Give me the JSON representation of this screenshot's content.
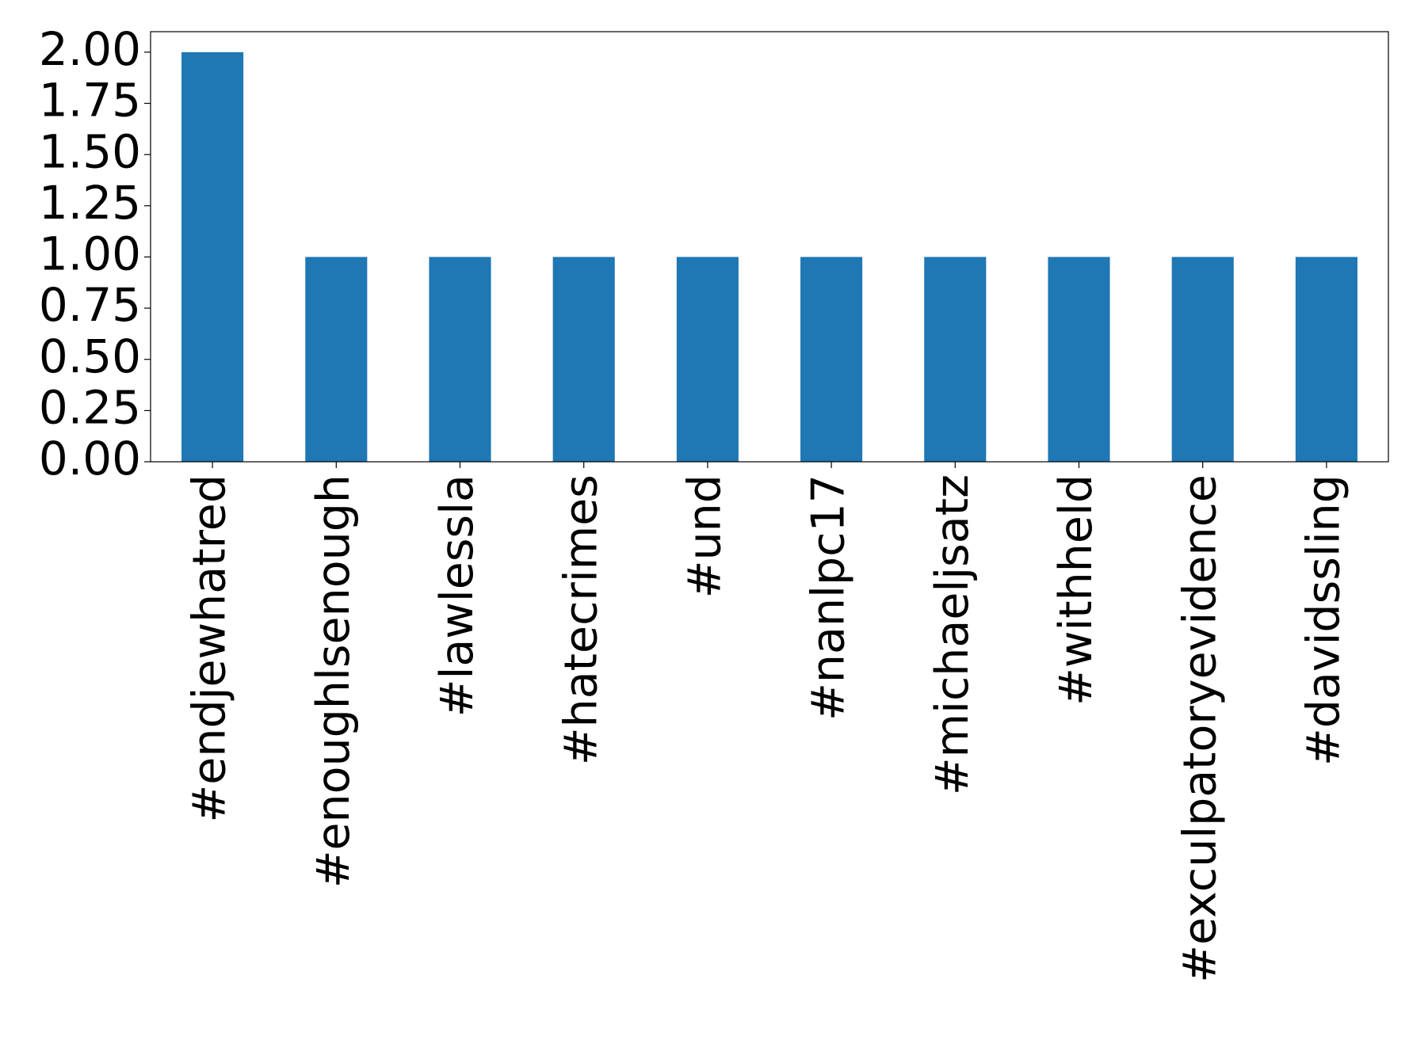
{
  "chart_data": {
    "type": "bar",
    "categories": [
      "#endjewhatred",
      "#enoughlsenough",
      "#lawlessla",
      "#hatecrimes",
      "#und",
      "#nanlpc17",
      "#michaeljsatz",
      "#withheld",
      "#exculpatoryevidence",
      "#davidssling"
    ],
    "values": [
      2,
      1,
      1,
      1,
      1,
      1,
      1,
      1,
      1,
      1
    ],
    "color": "#1f77b4",
    "ylim": [
      0,
      2.1
    ],
    "yticks": [
      {
        "value": 0,
        "label": "0.00"
      },
      {
        "value": 0.25,
        "label": "0.25"
      },
      {
        "value": 0.5,
        "label": "0.50"
      },
      {
        "value": 0.75,
        "label": "0.75"
      },
      {
        "value": 1,
        "label": "1.00"
      },
      {
        "value": 1.25,
        "label": "1.25"
      },
      {
        "value": 1.5,
        "label": "1.50"
      },
      {
        "value": 1.75,
        "label": "1.75"
      },
      {
        "value": 2,
        "label": "2.00"
      }
    ],
    "grid": false
  }
}
